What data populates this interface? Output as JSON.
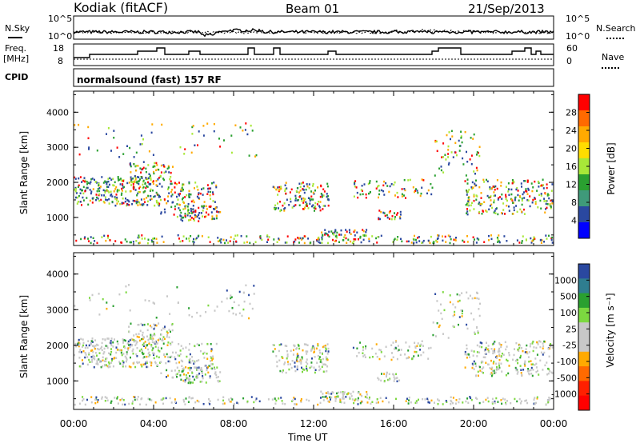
{
  "header": {
    "station": "Kodiak (fitACF)",
    "beam": "Beam 01",
    "date": "21/Sep/2013"
  },
  "left_labels": {
    "nsky": "N.Sky",
    "freq": "Freq.",
    "freq_unit": "[MHz]",
    "cpid": "CPID"
  },
  "right_labels": {
    "nsearch": "N.Search",
    "nave": "Nave"
  },
  "cpid_text": "normalsound (fast) 157 RF",
  "noise_ticks_left": [
    "10^5",
    "10^0"
  ],
  "noise_ticks_right": [
    "10^5",
    "10^0"
  ],
  "freq_ticks": [
    "18",
    "8"
  ],
  "nave_ticks": [
    "60",
    "0"
  ],
  "chart_data": [
    {
      "type": "heatmap",
      "title": "",
      "xlabel": "Time UT",
      "ylabel": "Slant Range [km]",
      "x_ticks": [
        "00:00",
        "04:00",
        "08:00",
        "12:00",
        "16:00",
        "20:00",
        "00:00"
      ],
      "y_ticks": [
        "1000",
        "2000",
        "3000",
        "4000"
      ],
      "ylim": [
        200,
        4600
      ],
      "colorbar": {
        "label": "Power [dB]",
        "ticks": [
          "28",
          "24",
          "20",
          "16",
          "12",
          "8",
          "4"
        ],
        "colors": [
          "#ff0000",
          "#ff6a00",
          "#ffaa00",
          "#ffdd00",
          "#a8e838",
          "#2aa030",
          "#3f9a7a",
          "#2a48a0",
          "#0000ff"
        ]
      }
    },
    {
      "type": "heatmap",
      "title": "",
      "xlabel": "Time UT",
      "ylabel": "Slant Range [km]",
      "x_ticks": [
        "00:00",
        "04:00",
        "08:00",
        "12:00",
        "16:00",
        "20:00",
        "00:00"
      ],
      "y_ticks": [
        "1000",
        "2000",
        "3000",
        "4000"
      ],
      "ylim": [
        200,
        4600
      ],
      "colorbar": {
        "label": "Velocity [m s⁻¹]",
        "ticks": [
          "1000",
          "500",
          "100",
          "25",
          "-25",
          "-100",
          "-500",
          "-1000"
        ],
        "colors": [
          "#2a48a0",
          "#2f7d8f",
          "#2aa030",
          "#7cd840",
          "#c8c8c8",
          "#c8c8c8",
          "#ffaa00",
          "#ff6a00",
          "#ff2000",
          "#ff0000"
        ]
      }
    }
  ]
}
